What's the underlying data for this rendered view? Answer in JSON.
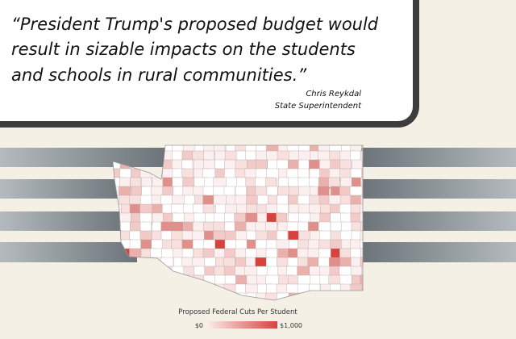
{
  "quote": {
    "text_lines": [
      "“President Trump's proposed budget would",
      "result in sizable impacts on the students",
      "and schools in rural communities.”"
    ],
    "author": "Chris Reykdal",
    "role": "State Superintendent"
  },
  "legend": {
    "title": "Proposed Federal Cuts Per Student",
    "min_label": "$0",
    "max_label": "$1,000"
  }
}
